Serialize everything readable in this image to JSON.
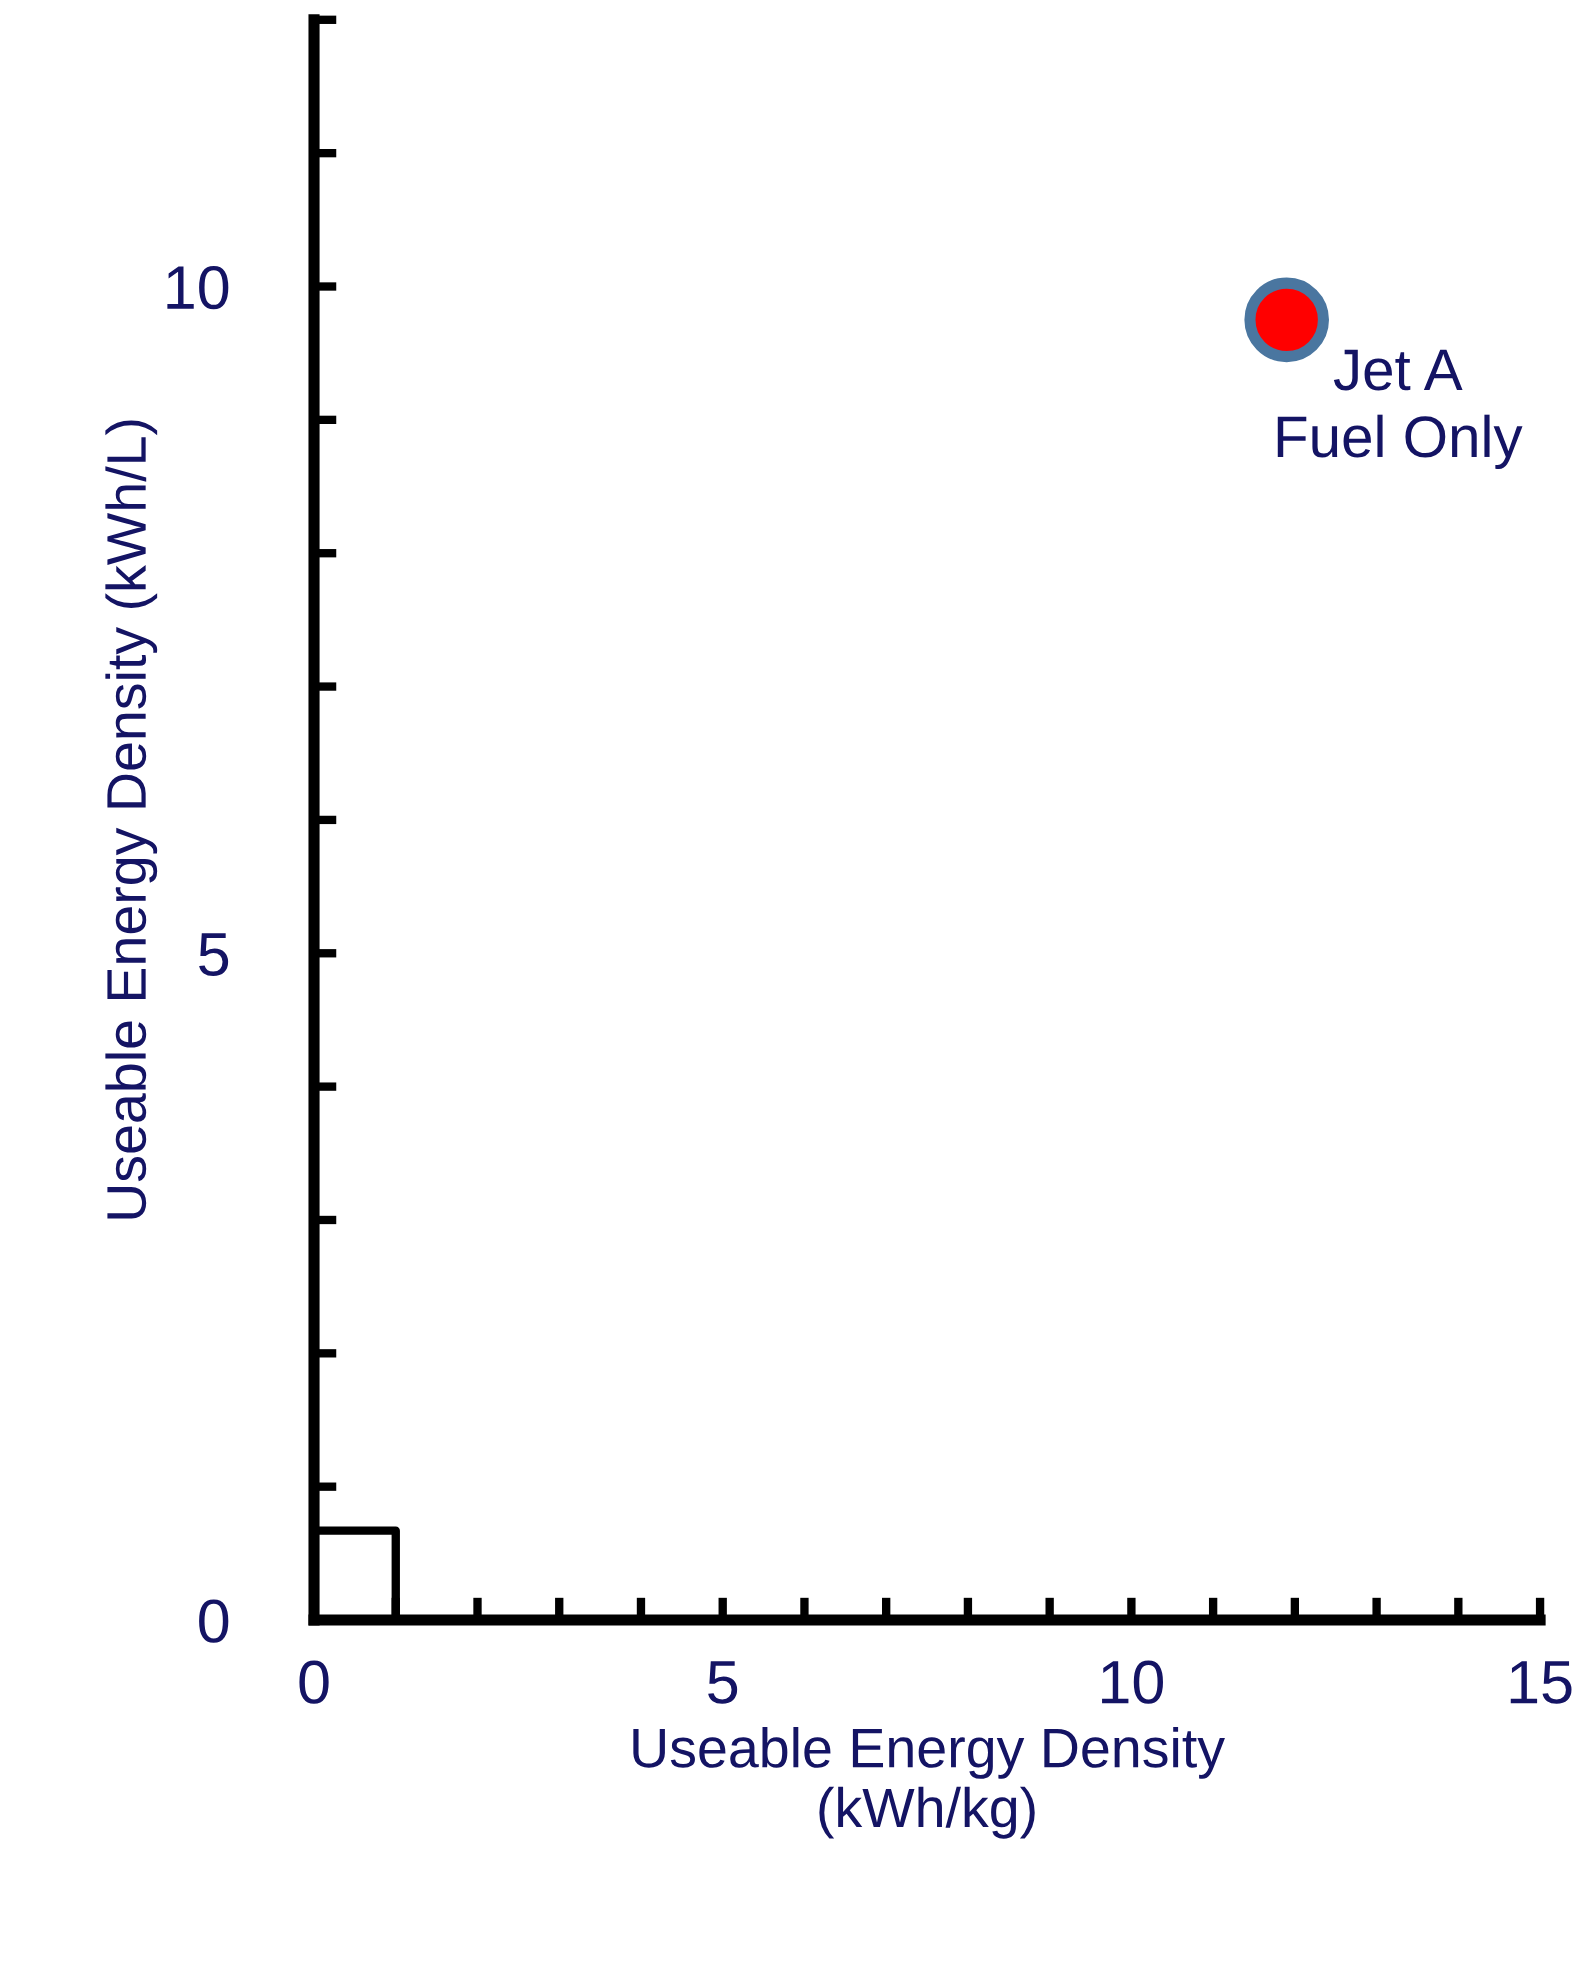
{
  "chart_data": {
    "type": "scatter",
    "xlabel": "Useable Energy Density\n(kWh/kg)",
    "ylabel": "Useable Energy Density (kWh/L)",
    "series": [
      {
        "type": "line",
        "color": "#000000",
        "x": [
          0,
          1,
          1
        ],
        "values": [
          0.67,
          0.67,
          0
        ],
        "marker": "none"
      },
      {
        "color": "#ff0000",
        "x": [
          11.9
        ],
        "values": [
          9.75
        ],
        "marker": "circle"
      }
    ],
    "annotations": [
      {
        "text": "Jet A\nFuel Only",
        "x": 11.9,
        "y": 9.75
      }
    ],
    "xlim": [
      0,
      15
    ],
    "ylim": [
      0,
      12
    ],
    "xticks": [
      0,
      {
        "value": 1,
        "label": null
      },
      {
        "value": 2,
        "label": null
      },
      {
        "value": 3,
        "label": null
      },
      {
        "value": 4,
        "label": null
      },
      5,
      {
        "value": 6,
        "label": null
      },
      {
        "value": 7,
        "label": null
      },
      {
        "value": 8,
        "label": null
      },
      {
        "value": 9,
        "label": null
      },
      10,
      {
        "value": 11,
        "label": null
      },
      {
        "value": 12,
        "label": null
      },
      {
        "value": 13,
        "label": null
      },
      {
        "value": 14,
        "label": null
      },
      15
    ],
    "yticks": [
      0,
      {
        "value": 1,
        "label": null
      },
      {
        "value": 2,
        "label": null
      },
      {
        "value": 3,
        "label": null
      },
      {
        "value": 4,
        "label": null
      },
      5,
      {
        "value": 6,
        "label": null
      },
      {
        "value": 7,
        "label": null
      },
      {
        "value": 8,
        "label": null
      },
      {
        "value": 9,
        "label": null
      },
      10,
      {
        "value": 11,
        "label": null
      },
      {
        "value": 12,
        "label": null
      }
    ],
    "grid": false,
    "legend": false
  }
}
